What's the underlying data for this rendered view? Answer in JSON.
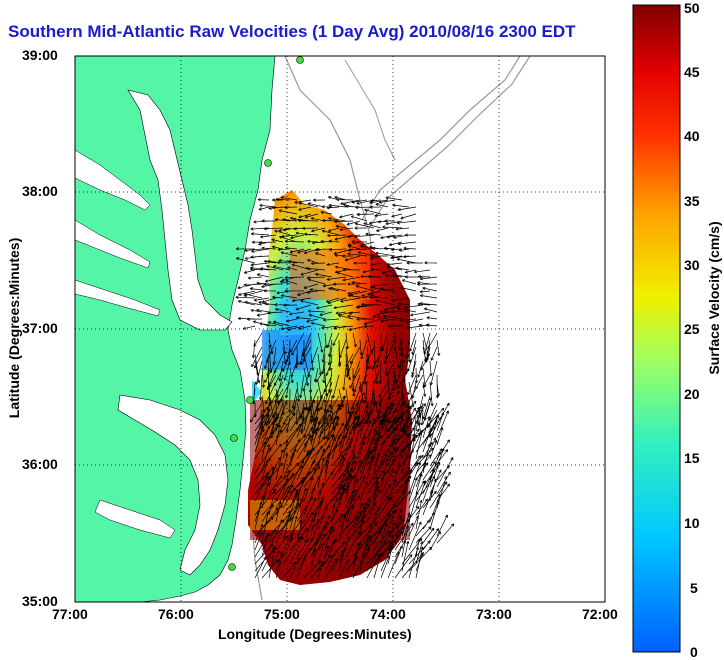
{
  "title": "Southern Mid-Atlantic Raw Velocities (1 Day Avg) 2010/08/16 2300 EDT",
  "map": {
    "xlabel": "Longitude (Degrees:Minutes)",
    "ylabel": "Latitude (Degrees:Minutes)",
    "x_ticks": [
      "77:00",
      "76:00",
      "75:00",
      "74:00",
      "73:00",
      "72:00"
    ],
    "y_ticks": [
      "39:00",
      "38:00",
      "37:00",
      "36:00",
      "35:00"
    ],
    "lon_range": [
      -77,
      -72
    ],
    "lat_range": [
      35,
      39
    ],
    "land_color": "#55f5a8",
    "gridlines": "dotted"
  },
  "colorbar": {
    "label": "Surface Velocity (cm/s)",
    "ticks": [
      "50",
      "45",
      "40",
      "35",
      "30",
      "25",
      "20",
      "15",
      "10",
      "5",
      "0"
    ],
    "range": [
      0,
      50
    ],
    "colormap": "jet"
  }
}
